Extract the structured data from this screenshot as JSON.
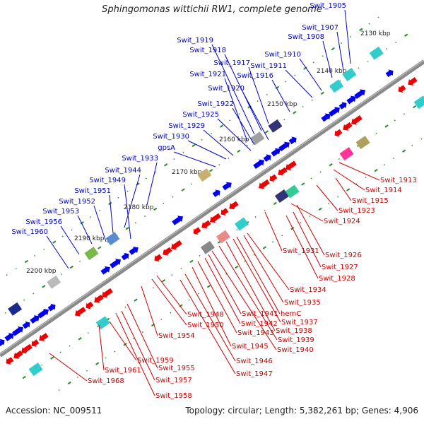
{
  "title": "Sphingomonas wittichii RW1, complete genome",
  "footer": {
    "accession": "Accession: NC_009511",
    "summary": "Topology: circular; Length: 5,382,261 bp; Genes: 4,906"
  },
  "colors": {
    "backbone": "#8a8a8a",
    "forward_gene": "#0000ee",
    "reverse_gene": "#ee0000",
    "tick": "#2a8a2a",
    "label_blue": "#0000cc",
    "label_red": "#cc0000"
  },
  "scale_labels": [
    "2130 kbp",
    "2140 kbp",
    "2150 kbp",
    "2160 kbp",
    "2170 kbp",
    "2180 kbp",
    "2190 kbp",
    "2200 kbp"
  ],
  "forward_labels": [
    "Swit_1905",
    "Swit_1907",
    "Swit_1908",
    "Swit_1910",
    "Swit_1911",
    "Swit_1916",
    "Swit_1917",
    "Swit_1918",
    "Swit_1919",
    "Swit_1921",
    "Swit_1920",
    "Swit_1922",
    "Swit_1925",
    "Swit_1929",
    "Swit_1930",
    "gpsA",
    "Swit_1933",
    "Swit_1944",
    "Swit_1949",
    "Swit_1951",
    "Swit_1952",
    "Swit_1953",
    "Swit_1956",
    "Swit_1960"
  ],
  "reverse_labels": [
    "Swit_1913",
    "Swit_1914",
    "Swit_1915",
    "Swit_1923",
    "Swit_1924",
    "Swit_1926",
    "Swit_1927",
    "Swit_1928",
    "Swit_1931",
    "Swit_1934",
    "Swit_1935",
    "hemC",
    "Swit_1937",
    "Swit_1938",
    "Swit_1939",
    "Swit_1940",
    "Swit_1941",
    "Swit_1942",
    "Swit_1943",
    "Swit_1945",
    "Swit_1946",
    "Swit_1947",
    "Swit_1948",
    "Swit_1950",
    "Swit_1954",
    "Swit_1955",
    "Swit_1957",
    "Swit_1958",
    "Swit_1959",
    "Swit_1961",
    "Swit_1968"
  ]
}
